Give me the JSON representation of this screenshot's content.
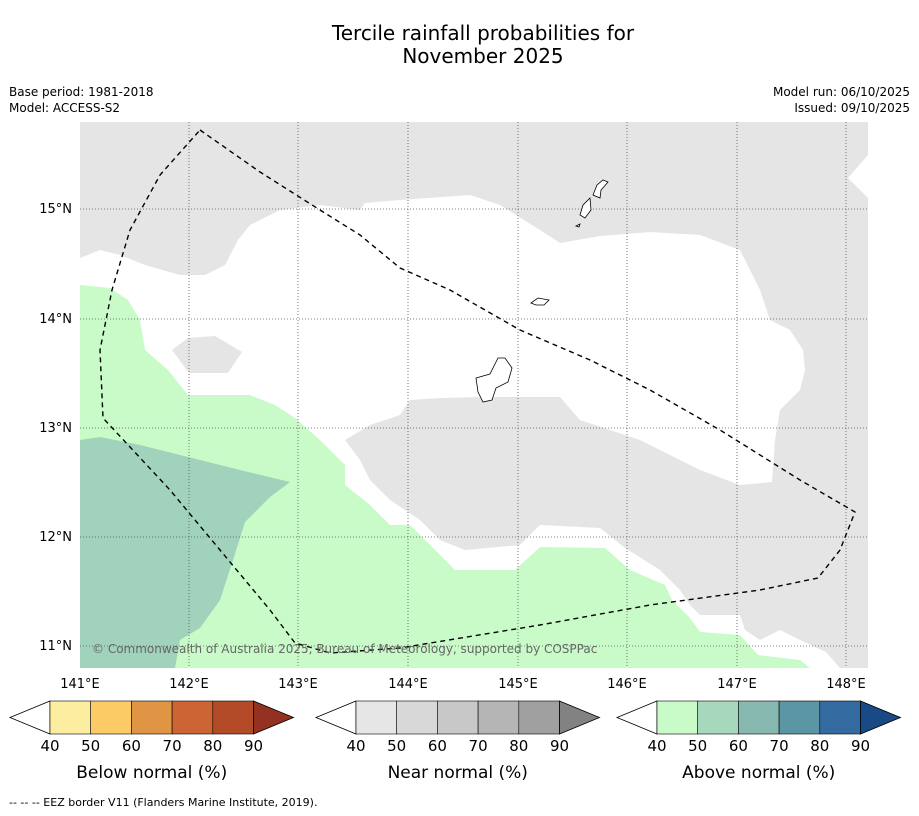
{
  "title": {
    "line1": "Tercile rainfall probabilities for",
    "line2": "November 2025"
  },
  "meta": {
    "base_period": "Base period: 1981-2018",
    "model": "Model: ACCESS-S2",
    "model_run": "Model run: 06/10/2025",
    "issued": "Issued: 09/10/2025"
  },
  "map": {
    "lat_labels": [
      "15°N",
      "14°N",
      "13°N",
      "12°N",
      "11°N"
    ],
    "lon_labels": [
      "141°E",
      "142°E",
      "143°E",
      "144°E",
      "145°E",
      "146°E",
      "147°E",
      "148°E"
    ],
    "copyright": "© Commonwealth of Australia 2025, Bureau of Meteorology, supported by COSPPac",
    "colors": {
      "near_normal_40": "#e5e5e5",
      "above_normal_40": "#c8fbc8",
      "above_normal_50": "#a0d2bc",
      "land_outline": "#000000",
      "eez_line": "#000000",
      "grid": "#555555"
    }
  },
  "colorbars": [
    {
      "id": "below",
      "title": "Below normal (%)",
      "ticks": [
        "40",
        "50",
        "60",
        "70",
        "80",
        "90"
      ],
      "colors": [
        "#ffffff",
        "#fdeda0",
        "#fdcb65",
        "#e09545",
        "#cc6433",
        "#b34b28",
        "#943222"
      ]
    },
    {
      "id": "near",
      "title": "Near normal (%)",
      "ticks": [
        "40",
        "50",
        "60",
        "70",
        "80",
        "90"
      ],
      "colors": [
        "#ffffff",
        "#e6e6e6",
        "#d8d8d8",
        "#c8c8c8",
        "#b5b5b5",
        "#a0a0a0",
        "#828282"
      ]
    },
    {
      "id": "above",
      "title": "Above normal (%)",
      "ticks": [
        "40",
        "50",
        "60",
        "70",
        "80",
        "90"
      ],
      "colors": [
        "#ffffff",
        "#c8fbc8",
        "#a6d8bd",
        "#86b8b0",
        "#5a96a4",
        "#336aa0",
        "#1a4a86"
      ]
    }
  ],
  "footnote": "-- -- -- EEZ border V11 (Flanders Marine Institute, 2019)."
}
